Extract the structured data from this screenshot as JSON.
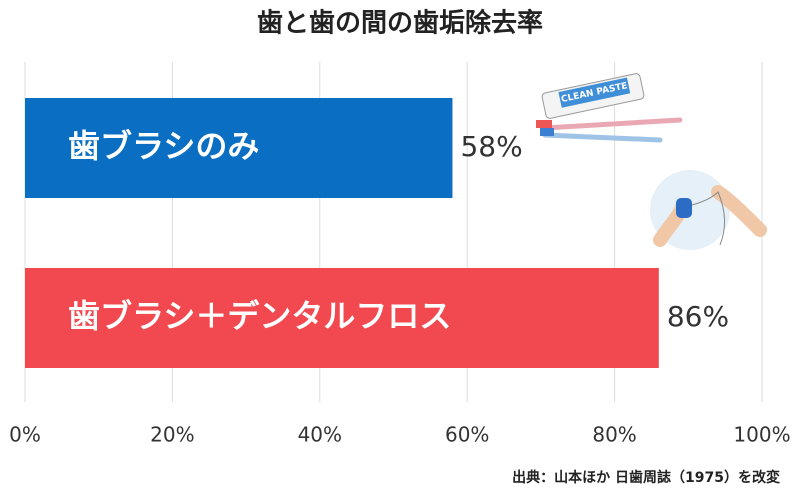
{
  "chart_data": {
    "type": "hbar",
    "title": "歯と歯の間の歯垢除去率",
    "categories": [
      "歯ブラシのみ",
      "歯ブラシ＋デンタルフロス"
    ],
    "values": [
      58,
      86
    ],
    "value_labels": [
      "58%",
      "86%"
    ],
    "colors": [
      "#0a6fc2",
      "#f2484f"
    ],
    "xlim": [
      0,
      100
    ],
    "xticks": [
      {
        "value": 0,
        "label": "0%"
      },
      {
        "value": 20,
        "label": "20%"
      },
      {
        "value": 40,
        "label": "40%"
      },
      {
        "value": 60,
        "label": "60%"
      },
      {
        "value": 80,
        "label": "80%"
      },
      {
        "value": 100,
        "label": "100%"
      }
    ],
    "grid": true,
    "source": "出典：山本ほか 日歯周誌（1975）を改変",
    "illustration_text": "CLEAN PASTE"
  }
}
